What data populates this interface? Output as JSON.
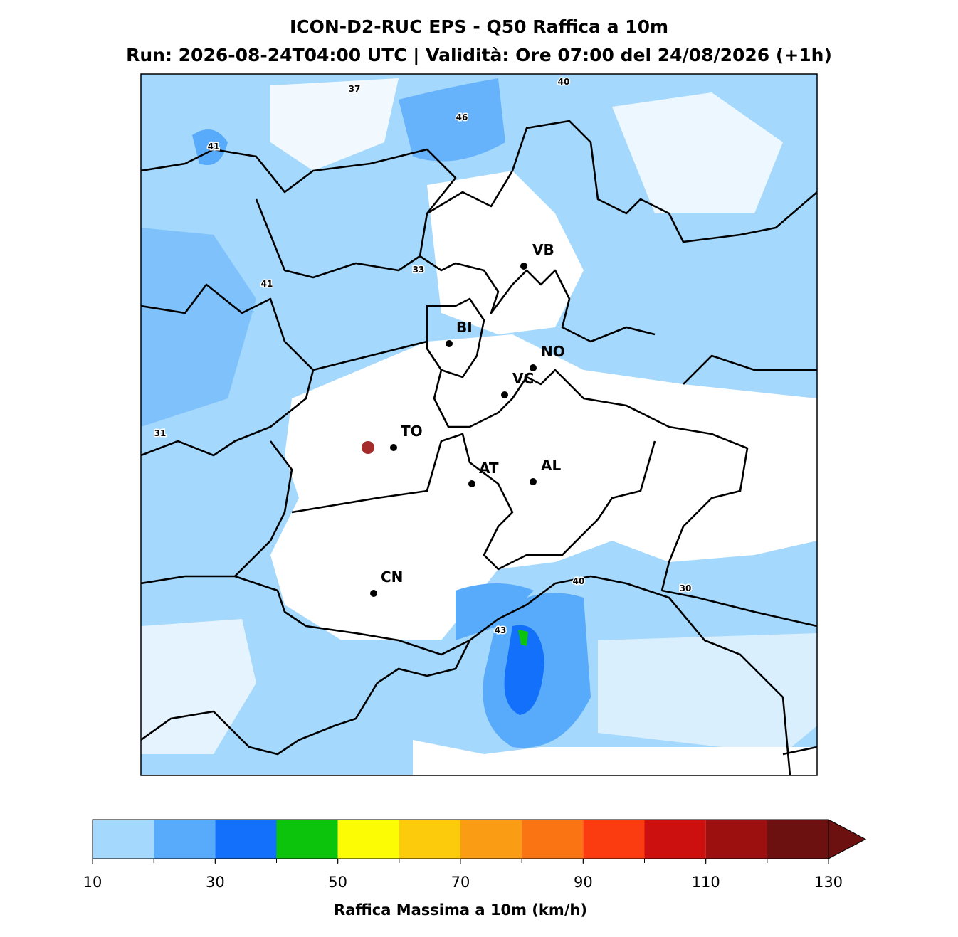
{
  "title": "ICON-D2-RUC EPS - Q50 Raffica a 10m",
  "subtitle": "Run: 2026-08-24T04:00 UTC | Validità: Ore 07:00 del 24/08/2026 (+1h)",
  "cities": [
    "VB",
    "BI",
    "NO",
    "VC",
    "TO",
    "AT",
    "AL",
    "CN"
  ],
  "contour_labels": [
    37,
    46,
    40,
    41,
    33,
    41,
    31,
    40,
    30,
    43
  ],
  "colorbar": {
    "label": "Raffica Massima a 10m (km/h)",
    "bounds": [
      10,
      20,
      30,
      40,
      50,
      60,
      70,
      80,
      90,
      100,
      110,
      120,
      130
    ],
    "colors": [
      "#a4d8fc",
      "#58aafa",
      "#1270fa",
      "#0cc40c",
      "#fcfc04",
      "#fccc0c",
      "#fa9c14",
      "#fa7414",
      "#fa3c10",
      "#cc1010",
      "#9c1010",
      "#6c1010"
    ],
    "extend_color": "#6c1010",
    "ticks": [
      10,
      30,
      50,
      70,
      90,
      110,
      130
    ]
  }
}
